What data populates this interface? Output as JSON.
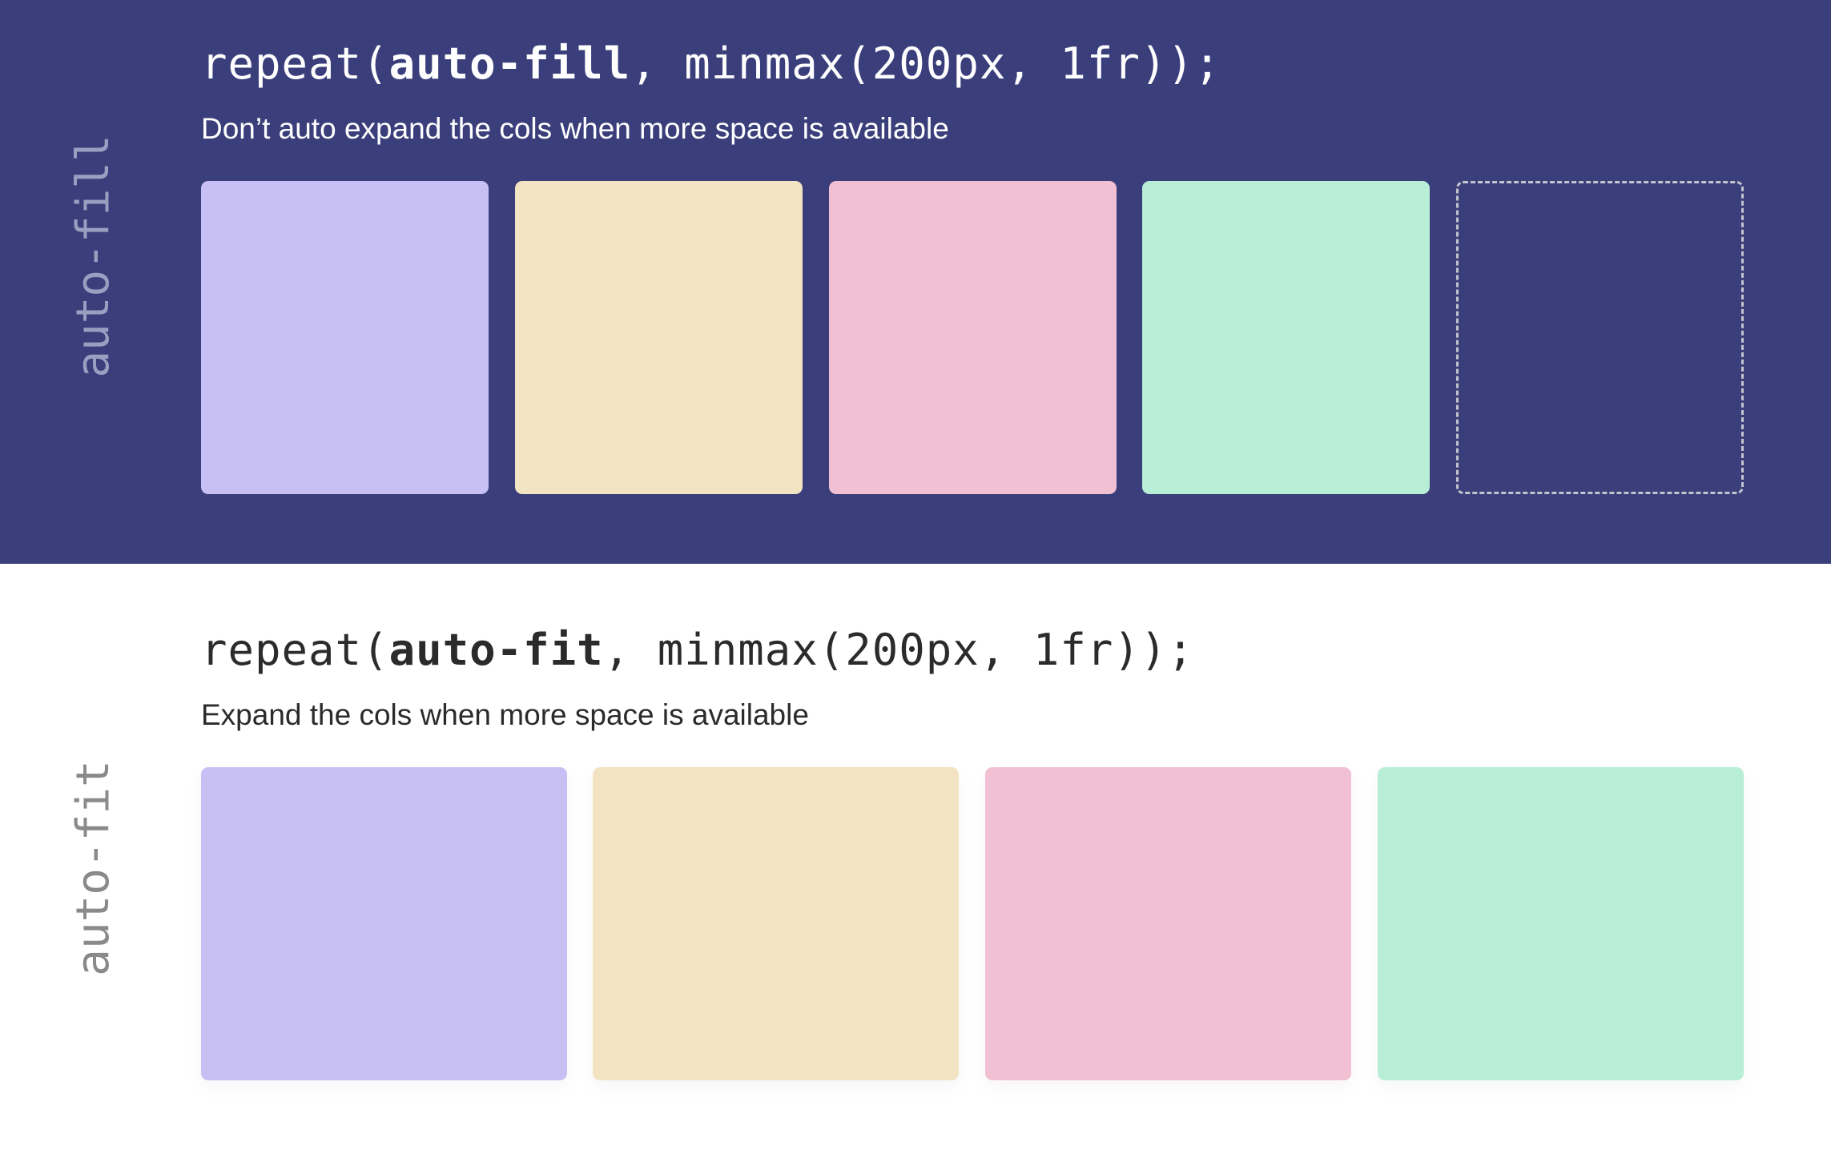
{
  "auto_fill": {
    "side_label": "auto-fill",
    "code_prefix": "repeat(",
    "code_keyword": "auto-fill",
    "code_suffix": ", minmax(200px, 1fr));",
    "description": "Don’t auto expand the cols when more space is available",
    "background": "#3a3f7b",
    "boxes": [
      "#c8c0f5",
      "#f2e4c3",
      "#f2c0d3",
      "#b8eed5"
    ],
    "empty_slot": true
  },
  "auto_fit": {
    "side_label": "auto-fit",
    "code_prefix": "repeat(",
    "code_keyword": "auto-fit",
    "code_suffix": ", minmax(200px, 1fr));",
    "description": "Expand the cols when more space is available",
    "background": "#ffffff",
    "boxes": [
      "#c8c0f5",
      "#f2e4c3",
      "#f2c0d3",
      "#b8eed5"
    ]
  }
}
